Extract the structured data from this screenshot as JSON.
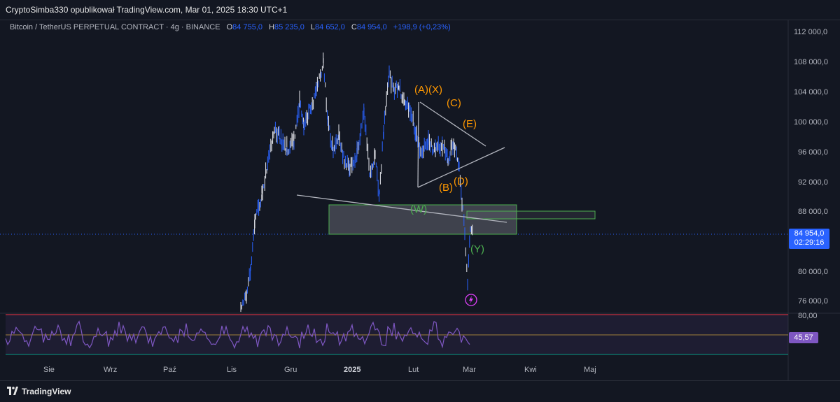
{
  "header": {
    "published_line": "CryptoSimba330 opublikował TradingView.com, Mar 01, 2025 18:30 UTC+1"
  },
  "legend": {
    "symbol": "Bitcoin / TetherUS PERPETUAL CONTRACT · 4g · BINANCE",
    "open_label": "O",
    "open": "84 755,0",
    "high_label": "H",
    "high": "85 235,0",
    "low_label": "L",
    "low": "84 652,0",
    "close_label": "C",
    "close": "84 954,0",
    "change": "+198,9 (+0,23%)"
  },
  "price_axis": {
    "ticks": [
      "112 000,0",
      "108 000,0",
      "104 000,0",
      "100 000,0",
      "96 000,0",
      "92 000,0",
      "88 000,0",
      "80 000,0",
      "76 000,0"
    ],
    "current_price": "84 954,0",
    "countdown": "02:29:16"
  },
  "rsi": {
    "upper_label": "80,00",
    "value": "45,57"
  },
  "time_axis": {
    "labels": [
      "Sie",
      "Wrz",
      "Paź",
      "Lis",
      "Gru",
      "2025",
      "Lut",
      "Mar",
      "Kwi",
      "Maj"
    ]
  },
  "annotations": {
    "a_x": "(A)(X)",
    "c": "(C)",
    "e": "(E)",
    "b": "(B)",
    "d": "(D)",
    "w": "(W)",
    "y": "(Y)"
  },
  "colors": {
    "background": "#131722",
    "candle": "#2962ff",
    "wave_orange": "#ff9800",
    "wave_green": "#4caf50",
    "rsi_line": "#7e57c2",
    "rsi_upper": "#f23645",
    "rsi_lower": "#089981"
  },
  "footer": {
    "brand": "TradingView",
    "logo_icon": "tradingview-logo-icon"
  }
}
